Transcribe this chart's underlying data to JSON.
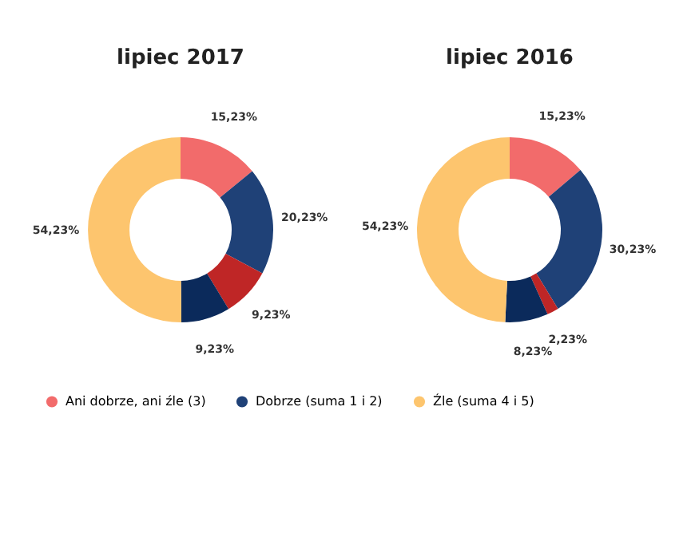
{
  "chart_data": [
    {
      "type": "donut",
      "title": "lipiec 2017",
      "legend": "bottom",
      "categories": [
        "Ani dobrze, ani źle (3)",
        "Dobrze (suma 1 i 2)",
        null,
        null,
        "Źle (suma 4 i 5)"
      ],
      "values": [
        15.23,
        20.23,
        9.23,
        9.23,
        54.23
      ],
      "value_labels": [
        "15,23%",
        "20,23%",
        "9,23%",
        "9,23%",
        "54,23%"
      ],
      "colors": [
        "#f26b6b",
        "#1f4177",
        "#bf2626",
        "#0b2a5b",
        "#fdc56e"
      ]
    },
    {
      "type": "donut",
      "title": "lipiec 2016",
      "categories": [
        null,
        null,
        null,
        null,
        null
      ],
      "values": [
        15.23,
        30.23,
        2.23,
        8.23,
        54.23
      ],
      "value_labels": [
        "15,23%",
        "30,23%",
        "2,23%",
        "8,23%",
        "54,23%"
      ],
      "colors": [
        "#f26b6b",
        "#1f4177",
        "#bf2626",
        "#0b2a5b",
        "#fdc56e"
      ]
    }
  ]
}
